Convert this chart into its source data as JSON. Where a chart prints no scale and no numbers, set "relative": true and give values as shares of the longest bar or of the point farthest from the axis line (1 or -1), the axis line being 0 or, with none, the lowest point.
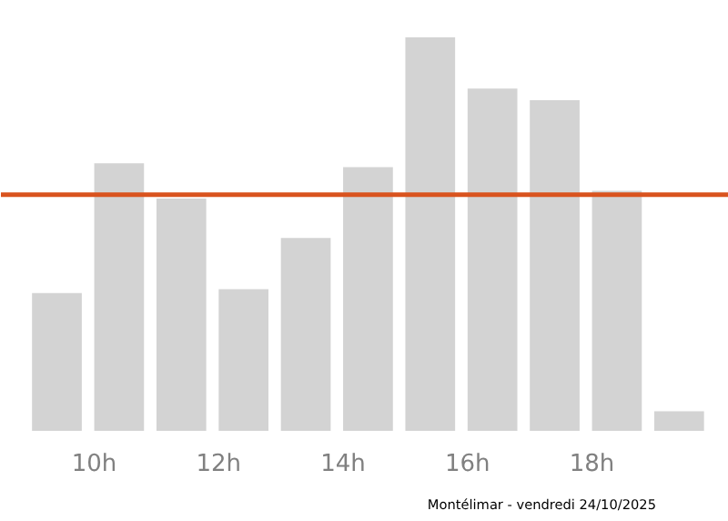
{
  "chart_data": {
    "type": "bar",
    "relative": true,
    "x": [
      9.4,
      10.4,
      11.4,
      12.4,
      13.4,
      14.4,
      15.4,
      16.4,
      17.4,
      18.4,
      19.4
    ],
    "values": [
      0.35,
      0.68,
      0.59,
      0.36,
      0.49,
      0.67,
      1,
      0.87,
      0.84,
      0.61,
      0.05
    ],
    "color": "#d3d3d3",
    "xlim": [
      8.5,
      20.2
    ],
    "xticks": [
      {
        "value": 10,
        "label": "10h"
      },
      {
        "value": 12,
        "label": "12h"
      },
      {
        "value": 14,
        "label": "14h"
      },
      {
        "value": 16,
        "label": "16h"
      },
      {
        "value": 18,
        "label": "18h"
      }
    ],
    "ref_lines": [
      {
        "axis": "y",
        "value": 0.6,
        "label": null,
        "color": "#d9531e"
      }
    ],
    "grid": false,
    "annotations": [
      "Montélimar - vendredi 24/10/2025"
    ]
  }
}
